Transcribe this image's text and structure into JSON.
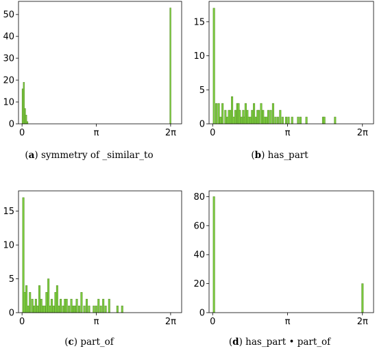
{
  "chart_data": [
    {
      "type": "bar",
      "panel_letter": "a",
      "caption": "symmetry of _similar_to",
      "xlim": [
        -0.15,
        6.75
      ],
      "ylim": [
        0,
        56
      ],
      "xticks": [
        {
          "value": 0,
          "label": "0"
        },
        {
          "value": 3.1416,
          "label": "π"
        },
        {
          "value": 6.2832,
          "label": "2π"
        }
      ],
      "yticks": [
        0,
        10,
        20,
        30,
        40,
        50
      ],
      "bin_width": 0.05,
      "color": "#7CCF3E",
      "edge_color": "#5a8f2a",
      "x": [
        0.0,
        0.05,
        0.1,
        0.15,
        0.2,
        6.25
      ],
      "values": [
        16,
        19,
        7,
        4,
        1,
        53
      ]
    },
    {
      "type": "bar",
      "panel_letter": "b",
      "caption": "has_part",
      "xlim": [
        -0.15,
        6.75
      ],
      "ylim": [
        0,
        18
      ],
      "xticks": [
        {
          "value": 0,
          "label": "0"
        },
        {
          "value": 3.1416,
          "label": "π"
        },
        {
          "value": 6.2832,
          "label": "2π"
        }
      ],
      "yticks": [
        0,
        5,
        10,
        15
      ],
      "bin_width": 0.07,
      "color": "#7CCF3E",
      "edge_color": "#5a8f2a",
      "x": [
        0.02,
        0.12,
        0.22,
        0.3,
        0.38,
        0.5,
        0.58,
        0.65,
        0.72,
        0.78,
        0.85,
        0.92,
        1.0,
        1.05,
        1.1,
        1.18,
        1.25,
        1.3,
        1.35,
        1.42,
        1.48,
        1.55,
        1.62,
        1.7,
        1.78,
        1.85,
        1.9,
        2.0,
        2.08,
        2.15,
        2.22,
        2.3,
        2.4,
        2.5,
        2.6,
        2.7,
        2.8,
        2.9,
        3.05,
        3.15,
        3.3,
        3.55,
        3.65,
        3.9,
        4.6,
        4.65,
        5.1
      ],
      "values": [
        17,
        3,
        3,
        1,
        3,
        2,
        1,
        2,
        2,
        4,
        1,
        2,
        3,
        3,
        2,
        1,
        2,
        1,
        3,
        2,
        1,
        1,
        2,
        3,
        1,
        2,
        2,
        3,
        2,
        1,
        1,
        2,
        2,
        3,
        1,
        1,
        2,
        1,
        1,
        1,
        1,
        1,
        1,
        1,
        1,
        1,
        1
      ]
    },
    {
      "type": "bar",
      "panel_letter": "c",
      "caption": "part_of",
      "xlim": [
        -0.15,
        6.75
      ],
      "ylim": [
        0,
        18
      ],
      "xticks": [
        {
          "value": 0,
          "label": "0"
        },
        {
          "value": 3.1416,
          "label": "π"
        },
        {
          "value": 6.2832,
          "label": "2π"
        }
      ],
      "yticks": [
        0,
        5,
        10,
        15
      ],
      "bin_width": 0.07,
      "color": "#7CCF3E",
      "edge_color": "#5a8f2a",
      "x": [
        0.02,
        0.08,
        0.15,
        0.22,
        0.3,
        0.4,
        0.48,
        0.55,
        0.62,
        0.7,
        0.78,
        0.85,
        0.92,
        1.0,
        1.08,
        1.15,
        1.22,
        1.3,
        1.38,
        1.45,
        1.52,
        1.6,
        1.7,
        1.78,
        1.85,
        1.95,
        2.05,
        2.12,
        2.2,
        2.28,
        2.38,
        2.48,
        2.6,
        2.7,
        2.8,
        3.0,
        3.1,
        3.2,
        3.3,
        3.4,
        3.5,
        3.65,
        4.0,
        4.2
      ],
      "values": [
        17,
        3,
        4,
        1,
        3,
        2,
        1,
        2,
        1,
        4,
        2,
        1,
        1,
        3,
        5,
        1,
        2,
        1,
        3,
        4,
        1,
        2,
        1,
        2,
        2,
        1,
        2,
        1,
        1,
        2,
        1,
        3,
        1,
        2,
        1,
        1,
        1,
        2,
        1,
        2,
        1,
        2,
        1,
        1
      ]
    },
    {
      "type": "bar",
      "panel_letter": "d",
      "caption": "has_part • part_of",
      "xlim": [
        -0.15,
        6.75
      ],
      "ylim": [
        0,
        84
      ],
      "xticks": [
        {
          "value": 0,
          "label": "0"
        },
        {
          "value": 3.1416,
          "label": "π"
        },
        {
          "value": 6.2832,
          "label": "2π"
        }
      ],
      "yticks": [
        0,
        20,
        40,
        60,
        80
      ],
      "bin_width": 0.07,
      "color": "#7CCF3E",
      "edge_color": "#5a8f2a",
      "x": [
        0.02,
        6.25
      ],
      "values": [
        80,
        20
      ]
    }
  ]
}
